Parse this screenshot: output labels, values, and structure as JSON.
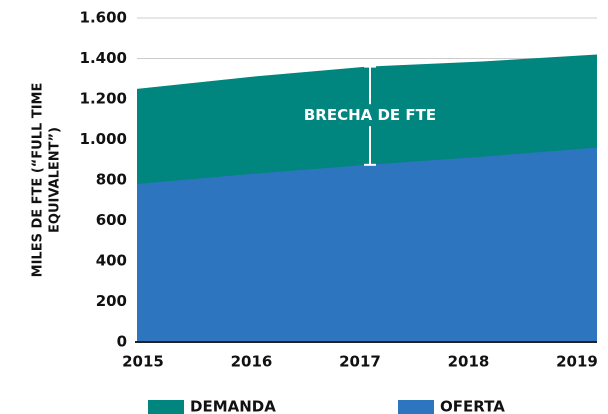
{
  "chart_data": {
    "type": "area",
    "y_label": [
      "MILES DE FTE (“FULL TIME",
      "EQUIVALENT”)"
    ],
    "annotation": "BRECHA DE FTE",
    "categories": [
      "2015",
      "2016",
      "2017",
      "2018",
      "2019"
    ],
    "series": [
      {
        "name": "DEMANDA",
        "color": "#00867f",
        "values": [
          1250,
          1310,
          1360,
          1385,
          1420
        ]
      },
      {
        "name": "OFERTA",
        "color": "#2e75c0",
        "values": [
          780,
          830,
          875,
          915,
          960
        ]
      }
    ],
    "ylim": [
      0,
      1600
    ],
    "yticks": [
      0,
      200,
      400,
      600,
      800,
      {
        "value": 1000,
        "label": "1.000"
      },
      {
        "value": 1200,
        "label": "1.200"
      },
      {
        "value": 1400,
        "label": "1.400"
      },
      {
        "value": 1600,
        "label": "1.600"
      }
    ],
    "grid": true,
    "legend": "bottom"
  }
}
